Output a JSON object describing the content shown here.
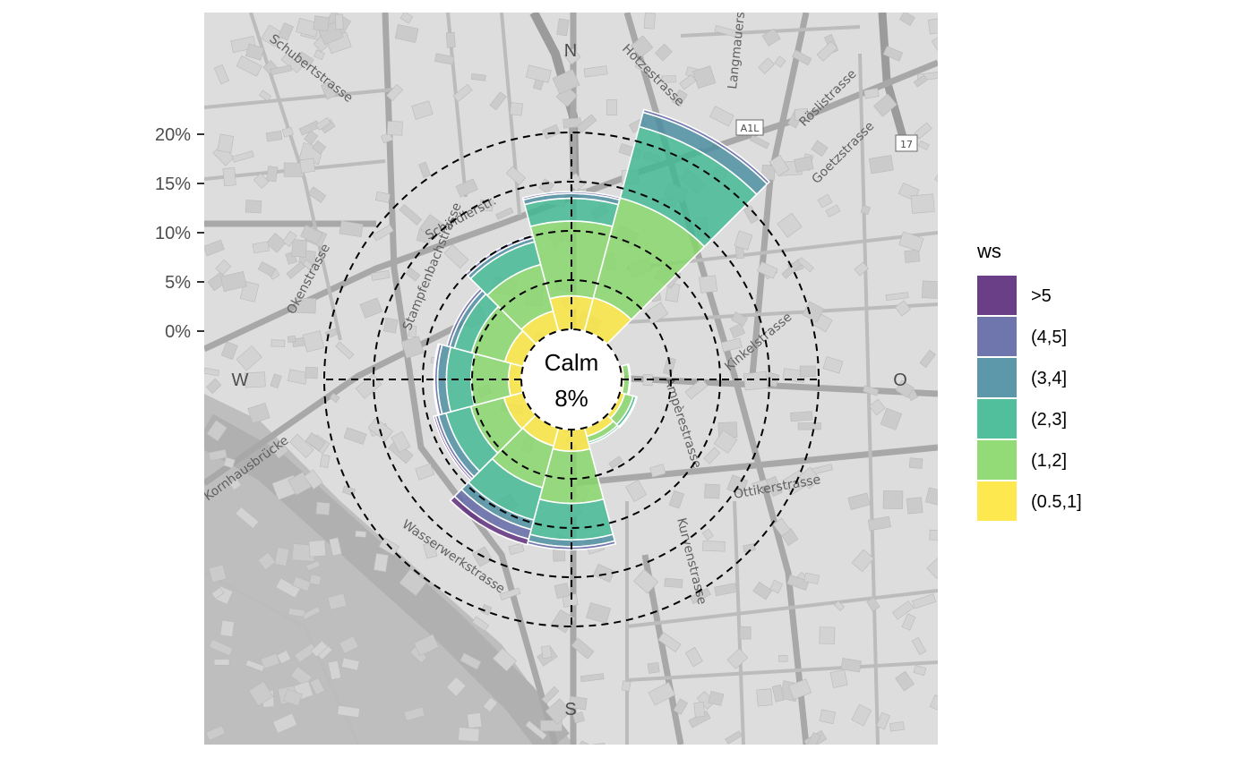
{
  "map": {
    "background": "#d9d9d9",
    "street_labels": [
      "Schubertstrasse",
      "Okenstrasse",
      "Schindlerstr.",
      "Hotzestrasse",
      "Langmauerstrasse",
      "Röslistrasse",
      "Goetzstrasse",
      "Kinkelstrasse",
      "Ottikerstrasse",
      "Kurvenstrasse",
      "Wasserwerkstrasse",
      "Ampèrestrasse",
      "Stampfenbachstrasse",
      "Kornhausbrücke"
    ],
    "road_badges": [
      "A1L",
      "17"
    ]
  },
  "chart_data": {
    "type": "windrose",
    "y_ticks": [
      "0%",
      "5%",
      "10%",
      "15%",
      "20%"
    ],
    "y_values": [
      0,
      5,
      10,
      15,
      20
    ],
    "directions": [
      "N",
      "O",
      "S",
      "W"
    ],
    "calm": {
      "label": "Calm",
      "value": "8%"
    },
    "legend": {
      "title": "ws",
      "entries": [
        {
          "label": ">5",
          "color": "#5b2a7b"
        },
        {
          "label": "(4,5]",
          "color": "#5f67a5"
        },
        {
          "label": "(3,4]",
          "color": "#4a8da1"
        },
        {
          "label": "(2,3]",
          "color": "#3fb891"
        },
        {
          "label": "(1,2]",
          "color": "#86d768"
        },
        {
          "label": "(0.5,1]",
          "color": "#fde73c"
        }
      ]
    },
    "bins": [
      "(0.5,1]",
      "(1,2]",
      "(2,3]",
      "(3,4]",
      "(4,5]",
      ">5"
    ],
    "sectors": [
      {
        "dir": 0,
        "values": [
          3.4,
          7.6,
          2.3,
          0.5,
          0.2,
          0.0
        ]
      },
      {
        "dir": 30,
        "values": [
          3.5,
          10.5,
          7.5,
          1.5,
          0.3,
          0.0
        ]
      },
      {
        "dir": 60,
        "values": [
          0.0,
          0.0,
          0.0,
          0.0,
          0.0,
          0.0
        ]
      },
      {
        "dir": 90,
        "values": [
          0.2,
          0.6,
          0.1,
          0.0,
          0.0,
          0.0
        ]
      },
      {
        "dir": 120,
        "values": [
          0.5,
          0.9,
          0.3,
          0.1,
          0.0,
          0.0
        ]
      },
      {
        "dir": 150,
        "values": [
          0.9,
          0.6,
          0.2,
          0.0,
          0.0,
          0.0
        ]
      },
      {
        "dir": 180,
        "values": [
          2.2,
          5.3,
          3.7,
          0.7,
          0.3,
          0.0
        ]
      },
      {
        "dir": 210,
        "values": [
          1.9,
          4.4,
          3.4,
          1.0,
          1.0,
          0.6
        ]
      },
      {
        "dir": 240,
        "values": [
          2.0,
          3.5,
          2.6,
          0.8,
          0.3,
          0.2
        ]
      },
      {
        "dir": 270,
        "values": [
          1.3,
          3.8,
          2.5,
          0.9,
          0.3,
          0.1
        ]
      },
      {
        "dir": 300,
        "values": [
          1.9,
          3.5,
          1.8,
          0.5,
          0.3,
          0.0
        ]
      },
      {
        "dir": 330,
        "values": [
          2.1,
          4.9,
          2.4,
          0.4,
          0.3,
          0.0
        ]
      }
    ]
  }
}
